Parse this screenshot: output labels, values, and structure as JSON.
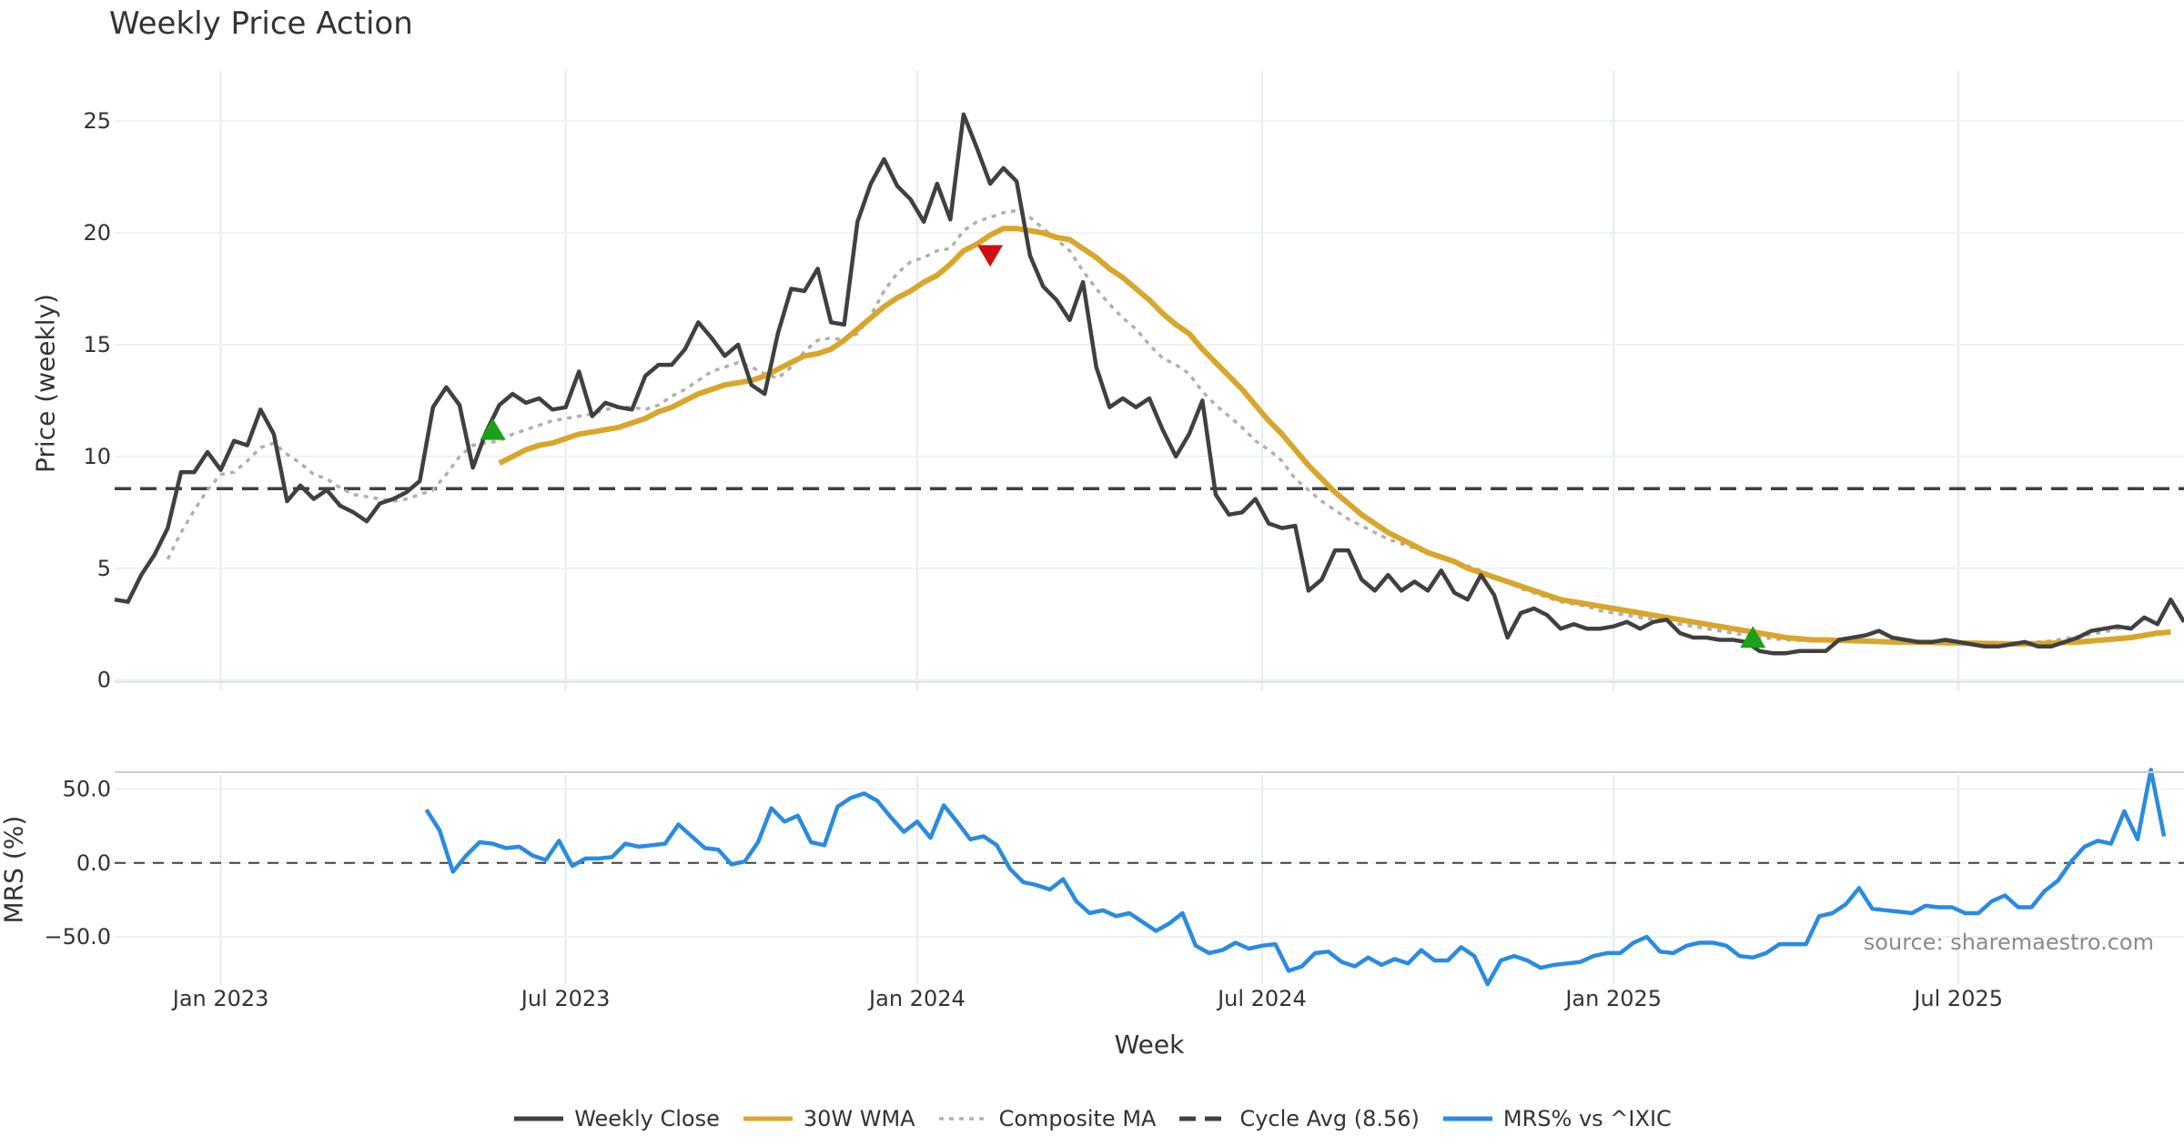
{
  "chart_data": [
    {
      "type": "line",
      "title": "Weekly Price Action",
      "ylabel": "Price (weekly)",
      "xlabel": "Week",
      "ylim": [
        -0.5,
        27
      ],
      "yticks": [
        0,
        5,
        10,
        15,
        20,
        25
      ],
      "x_tick_labels": [
        "Jan 2023",
        "Jul 2023",
        "Jan 2024",
        "Jul 2024",
        "Jan 2025",
        "Jul 2025"
      ],
      "x_tick_weeks": [
        8,
        34,
        60.5,
        86.5,
        113,
        139
      ],
      "total_weeks": 156,
      "reference_line": {
        "name": "Cycle Avg (8.56)",
        "value": 8.56
      },
      "series": [
        {
          "name": "Weekly Close",
          "color": "#404040",
          "start_week": 0,
          "values": [
            3.6,
            3.5,
            4.7,
            5.6,
            6.8,
            9.3,
            9.3,
            10.2,
            9.4,
            10.7,
            10.5,
            12.1,
            11.0,
            8.0,
            8.7,
            8.1,
            8.5,
            7.8,
            7.5,
            7.1,
            7.9,
            8.1,
            8.4,
            8.9,
            12.2,
            13.1,
            12.3,
            9.5,
            11.1,
            12.3,
            12.8,
            12.4,
            12.6,
            12.1,
            12.2,
            13.8,
            11.8,
            12.4,
            12.2,
            12.1,
            13.6,
            14.1,
            14.1,
            14.8,
            16.0,
            15.3,
            14.5,
            15.0,
            13.2,
            12.8,
            15.5,
            17.5,
            17.4,
            18.4,
            16.0,
            15.9,
            20.5,
            22.2,
            23.3,
            22.1,
            21.5,
            20.5,
            22.2,
            20.6,
            25.3,
            23.8,
            22.2,
            22.9,
            22.3,
            19.0,
            17.6,
            17.0,
            16.1,
            17.8,
            14.0,
            12.2,
            12.6,
            12.2,
            12.6,
            11.2,
            10.0,
            11.0,
            12.5,
            8.3,
            7.4,
            7.5,
            8.1,
            7.0,
            6.8,
            6.9,
            4.0,
            4.5,
            5.8,
            5.8,
            4.5,
            4.0,
            4.7,
            4.0,
            4.4,
            4.0,
            4.9,
            3.9,
            3.6,
            4.7,
            3.8,
            1.9,
            3.0,
            3.2,
            2.9,
            2.3,
            2.5,
            2.3,
            2.3,
            2.4,
            2.6,
            2.3,
            2.6,
            2.7,
            2.1,
            1.9,
            1.9,
            1.8,
            1.8,
            1.7,
            1.3,
            1.2,
            1.2,
            1.3,
            1.3,
            1.3,
            1.8,
            1.9,
            2.0,
            2.2,
            1.9,
            1.8,
            1.7,
            1.7,
            1.8,
            1.7,
            1.6,
            1.5,
            1.5,
            1.6,
            1.7,
            1.5,
            1.5,
            1.7,
            1.9,
            2.2,
            2.3,
            2.4,
            2.3,
            2.8,
            2.5,
            3.6,
            2.6
          ]
        },
        {
          "name": "30W WMA",
          "color": "#d8a62a",
          "start_week": 29,
          "values": [
            9.7,
            10.0,
            10.3,
            10.5,
            10.6,
            10.8,
            11.0,
            11.1,
            11.2,
            11.3,
            11.5,
            11.7,
            12.0,
            12.2,
            12.5,
            12.8,
            13.0,
            13.2,
            13.3,
            13.4,
            13.6,
            13.9,
            14.2,
            14.5,
            14.6,
            14.8,
            15.2,
            15.7,
            16.2,
            16.7,
            17.1,
            17.4,
            17.8,
            18.1,
            18.6,
            19.2,
            19.5,
            19.9,
            20.2,
            20.2,
            20.1,
            20.0,
            19.8,
            19.7,
            19.3,
            18.9,
            18.4,
            18.0,
            17.5,
            17.0,
            16.4,
            15.9,
            15.5,
            14.8,
            14.2,
            13.6,
            13.0,
            12.3,
            11.6,
            11.0,
            10.3,
            9.6,
            9.0,
            8.4,
            7.9,
            7.4,
            7.0,
            6.6,
            6.3,
            6.0,
            5.7,
            5.5,
            5.3,
            5.0,
            4.8,
            4.6,
            4.4,
            4.2,
            4.0,
            3.8,
            3.6,
            3.5,
            3.4,
            3.3,
            3.2,
            3.1,
            3.0,
            2.9,
            2.8,
            2.7,
            2.6,
            2.5,
            2.4,
            2.3,
            2.2,
            2.1,
            2.0,
            1.9,
            1.85,
            1.8,
            1.8,
            1.78,
            1.76,
            1.74,
            1.72,
            1.7,
            1.7,
            1.69,
            1.68,
            1.67,
            1.66,
            1.65,
            1.64,
            1.63,
            1.62,
            1.62,
            1.63,
            1.65,
            1.68,
            1.7,
            1.75,
            1.8,
            1.85,
            1.9,
            2.0,
            2.1,
            2.15
          ]
        },
        {
          "name": "Composite MA",
          "color": "#b0b0b0",
          "start_week": 4,
          "values": [
            5.4,
            6.6,
            7.6,
            8.5,
            9.2,
            9.3,
            9.8,
            10.4,
            10.6,
            10.1,
            9.7,
            9.2,
            9.0,
            8.6,
            8.3,
            8.2,
            8.1,
            8.0,
            8.1,
            8.3,
            8.5,
            9.2,
            10.0,
            10.5,
            10.6,
            10.7,
            11.0,
            11.2,
            11.4,
            11.6,
            11.7,
            11.8,
            11.9,
            12.1,
            12.2,
            12.2,
            12.1,
            12.3,
            12.7,
            13.0,
            13.4,
            13.8,
            14.0,
            14.2,
            14.0,
            13.7,
            13.5,
            14.0,
            14.7,
            15.2,
            15.3,
            15.2,
            15.5,
            16.3,
            17.4,
            18.2,
            18.7,
            18.9,
            19.2,
            19.3,
            20.1,
            20.5,
            20.7,
            20.9,
            21.0,
            20.7,
            20.2,
            19.7,
            19.2,
            18.3,
            17.5,
            16.8,
            16.2,
            15.7,
            15.0,
            14.4,
            14.1,
            13.7,
            12.9,
            12.3,
            11.8,
            11.3,
            10.7,
            10.3,
            9.8,
            9.0,
            8.5,
            8.0,
            7.6,
            7.2,
            6.9,
            6.6,
            6.3,
            6.1,
            5.9,
            5.7,
            5.5,
            5.3,
            5.1,
            4.9,
            4.6,
            4.4,
            4.1,
            3.9,
            3.7,
            3.5,
            3.4,
            3.3,
            3.1,
            3.0,
            2.9,
            2.8,
            2.7,
            2.6,
            2.5,
            2.4,
            2.3,
            2.2,
            2.1,
            2.0,
            1.9,
            1.85,
            1.8,
            1.78,
            1.75,
            1.74,
            1.73,
            1.72,
            1.71,
            1.7,
            1.69,
            1.68,
            1.67,
            1.66,
            1.65,
            1.64,
            1.63,
            1.62,
            1.61,
            1.6,
            1.65,
            1.7,
            1.75,
            1.85,
            1.95,
            2.05,
            2.15,
            2.3,
            2.4
          ]
        }
      ],
      "markers": [
        {
          "type": "buy",
          "week": 28.5,
          "value": 11.2,
          "color": "#1aa01a"
        },
        {
          "type": "sell",
          "week": 66,
          "value": 19.0,
          "color": "#cc1111"
        },
        {
          "type": "buy",
          "week": 123.5,
          "value": 1.9,
          "color": "#1aa01a"
        }
      ]
    },
    {
      "type": "line",
      "ylabel": "MRS (%)",
      "ylim": [
        -82,
        62
      ],
      "yticks": [
        50.0,
        0.0,
        -50.0
      ],
      "ytick_labels": [
        "50.0",
        "0.0",
        "−50.0"
      ],
      "reference_line": {
        "value": 0
      },
      "series": [
        {
          "name": "MRS% vs ^IXIC",
          "color": "#2a8be0",
          "start_week": 23.5,
          "values": [
            36,
            22,
            -6,
            5,
            14,
            13,
            10,
            11,
            5,
            2,
            15,
            -2,
            3,
            3,
            4,
            13,
            11,
            12,
            13,
            26,
            18,
            10,
            9,
            -1,
            1,
            14,
            37,
            28,
            32,
            14,
            12,
            38,
            44,
            47,
            42,
            31,
            21,
            28,
            17,
            39,
            28,
            16,
            18,
            12,
            -4,
            -13,
            -15,
            -18,
            -11,
            -26,
            -34,
            -32,
            -36,
            -34,
            -40,
            -46,
            -41,
            -34,
            -56,
            -61,
            -59,
            -54,
            -58,
            -56,
            -55,
            -73,
            -70,
            -61,
            -60,
            -67,
            -70,
            -64,
            -69,
            -65,
            -68,
            -59,
            -66,
            -66,
            -57,
            -63,
            -82,
            -66,
            -63,
            -66,
            -71,
            -69,
            -68,
            -67,
            -63,
            -61,
            -61,
            -54,
            -50,
            -60,
            -61,
            -56,
            -54,
            -54,
            -56,
            -63,
            -64,
            -61,
            -55,
            -55,
            -55,
            -36,
            -34,
            -28,
            -17,
            -31,
            -32,
            -33,
            -34,
            -29,
            -30,
            -30,
            -34,
            -34,
            -26,
            -22,
            -30,
            -30,
            -19,
            -12,
            1,
            11,
            15,
            13,
            35,
            16,
            63,
            18
          ]
        }
      ],
      "annotation": "source: sharemaestro.com"
    }
  ],
  "legend": {
    "items": [
      {
        "label": "Weekly Close",
        "color": "#404040",
        "style": "solid"
      },
      {
        "label": "30W WMA",
        "color": "#d8a62a",
        "style": "solid"
      },
      {
        "label": "Composite MA",
        "color": "#b0b0b0",
        "style": "dotted"
      },
      {
        "label": "Cycle Avg (8.56)",
        "color": "#404040",
        "style": "dashed"
      },
      {
        "label": "MRS% vs ^IXIC",
        "color": "#2a8be0",
        "style": "solid"
      }
    ]
  }
}
